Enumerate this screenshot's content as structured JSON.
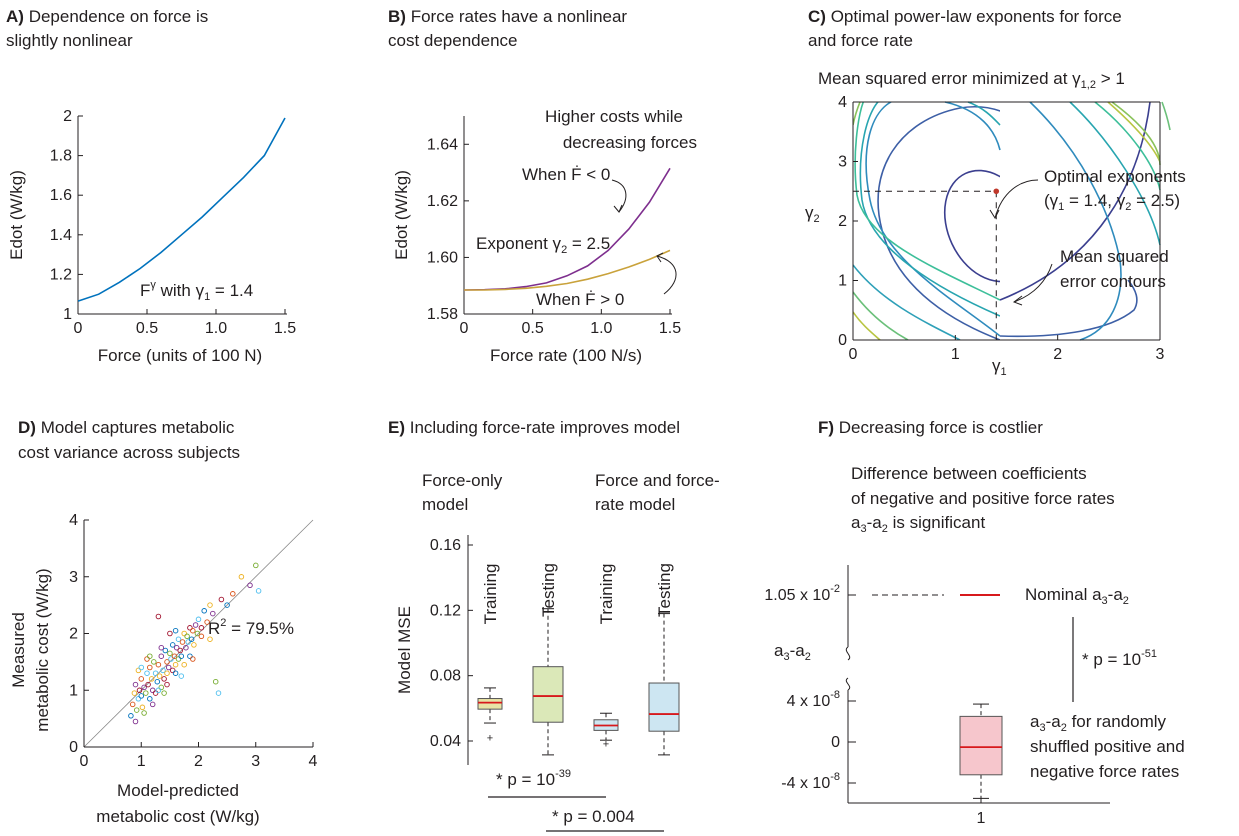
{
  "chart_data": [
    {
      "panel": "A",
      "type": "line",
      "title_letter": "A)",
      "title_line1": "Dependence on force is",
      "title_line2": "slightly nonlinear",
      "xlabel": "Force (units of 100 N)",
      "ylabel": "Edot (W/kg)",
      "xlim": [
        0,
        1.5
      ],
      "ylim": [
        1,
        2
      ],
      "xticks": [
        "0",
        "0.5",
        "1.0",
        "1.5"
      ],
      "yticks": [
        "1",
        "1.2",
        "1.4",
        "1.6",
        "1.8",
        "2"
      ],
      "series": [
        {
          "color": "#0072bd",
          "exponent": 1.4,
          "x": [
            0,
            0.15,
            0.3,
            0.45,
            0.6,
            0.75,
            0.9,
            1.05,
            1.2,
            1.35,
            1.5
          ],
          "y": [
            1.065,
            1.1,
            1.16,
            1.23,
            1.31,
            1.4,
            1.49,
            1.59,
            1.69,
            1.8,
            1.99
          ]
        }
      ],
      "annotation_base": "F",
      "annotation_sup": "γ",
      "annotation_rest": " with γ",
      "annotation_sub": "1",
      "annotation_value": " = 1.4"
    },
    {
      "panel": "B",
      "type": "line",
      "title_letter": "B)",
      "title_line1": "Force rates have a nonlinear",
      "title_line2": "cost dependence",
      "xlabel": "Force rate (100 N/s)",
      "ylabel": "Edot (W/kg)",
      "xlim": [
        0,
        1.5
      ],
      "ylim": [
        1.58,
        1.65
      ],
      "xticks": [
        "0",
        "0.5",
        "1.0",
        "1.5"
      ],
      "yticks": [
        "1.58",
        "1.60",
        "1.62",
        "1.64"
      ],
      "series": [
        {
          "color": "#7e2f8e",
          "label": "When Ḟ < 0",
          "x": [
            0,
            0.15,
            0.3,
            0.45,
            0.6,
            0.75,
            0.9,
            1.05,
            1.2,
            1.35,
            1.5
          ],
          "y": [
            1.5885,
            1.5886,
            1.5889,
            1.5897,
            1.591,
            1.5935,
            1.597,
            1.6025,
            1.61,
            1.6195,
            1.6315
          ]
        },
        {
          "color": "#c9a23b",
          "label": "When Ḟ > 0",
          "x": [
            0,
            0.15,
            0.3,
            0.45,
            0.6,
            0.75,
            0.9,
            1.05,
            1.2,
            1.35,
            1.5
          ],
          "y": [
            1.5885,
            1.5885,
            1.5887,
            1.5891,
            1.5898,
            1.5908,
            1.5923,
            1.5943,
            1.5966,
            1.5993,
            1.6025
          ]
        }
      ],
      "note_line1": "Higher costs while",
      "note_line2": "decreasing forces",
      "upper_label": "When Ḟ < 0",
      "exp_prefix": "Exponent γ",
      "exp_sub": "2",
      "exp_value": " = 2.5",
      "lower_label": "When Ḟ > 0"
    },
    {
      "panel": "C",
      "type": "contour",
      "title_letter": "C)",
      "title_line1": "Optimal power-law exponents for force",
      "title_line2": "and force rate",
      "subtitle_prefix": "Mean squared error minimized at γ",
      "subtitle_sub": "1,2",
      "subtitle_suffix": " > 1",
      "xlabel": "γ",
      "xlabel_sub": "1",
      "ylabel": "γ",
      "ylabel_sub": "2",
      "xlim": [
        0,
        3
      ],
      "ylim": [
        0,
        4
      ],
      "xticks": [
        "0",
        "1",
        "2",
        "3"
      ],
      "yticks": [
        "0",
        "1",
        "2",
        "3",
        "4"
      ],
      "optimum": {
        "x": 1.4,
        "y": 2.5
      },
      "opt_line1": "Optimal exponents",
      "opt_line2_a": "(γ",
      "opt_line2_b": "1",
      "opt_line2_c": " = 1.4, γ",
      "opt_line2_d": "2",
      "opt_line2_e": " = 2.5)",
      "mse_line1": "Mean squared",
      "mse_line2": "error contours"
    },
    {
      "panel": "D",
      "type": "scatter",
      "title_letter": "D)",
      "title_line1": "Model captures metabolic",
      "title_line2": "cost variance across subjects",
      "xlabel_line1": "Model-predicted",
      "xlabel_line2": "metabolic cost (W/kg)",
      "ylabel_line1": "Measured",
      "ylabel_line2": "metabolic cost (W/kg)",
      "xlim": [
        0,
        4
      ],
      "ylim": [
        0,
        4
      ],
      "xticks": [
        "0",
        "1",
        "2",
        "3",
        "4"
      ],
      "yticks": [
        "0",
        "1",
        "2",
        "3",
        "4"
      ],
      "r2_label": "R",
      "r2_sup": "2",
      "r2_value": " = 79.5%",
      "colors": [
        "#0072bd",
        "#d95319",
        "#edb120",
        "#7e2f8e",
        "#77ac30",
        "#4dbeee",
        "#a2142f"
      ],
      "points": [
        [
          0.82,
          0.55
        ],
        [
          0.85,
          0.75
        ],
        [
          0.88,
          0.95
        ],
        [
          0.9,
          1.1
        ],
        [
          0.92,
          0.65
        ],
        [
          0.95,
          0.85
        ],
        [
          0.97,
          1.0
        ],
        [
          1.0,
          0.9
        ],
        [
          1.0,
          1.2
        ],
        [
          1.02,
          0.7
        ],
        [
          1.05,
          1.05
        ],
        [
          1.08,
          0.95
        ],
        [
          1.1,
          1.3
        ],
        [
          1.12,
          1.1
        ],
        [
          1.15,
          0.85
        ],
        [
          1.15,
          1.4
        ],
        [
          1.18,
          1.2
        ],
        [
          1.2,
          1.0
        ],
        [
          1.22,
          1.5
        ],
        [
          1.25,
          1.3
        ],
        [
          1.25,
          0.95
        ],
        [
          1.28,
          1.15
        ],
        [
          1.3,
          1.45
        ],
        [
          1.32,
          1.25
        ],
        [
          1.35,
          1.6
        ],
        [
          1.35,
          1.05
        ],
        [
          1.38,
          1.35
        ],
        [
          1.4,
          1.2
        ],
        [
          1.42,
          1.7
        ],
        [
          1.45,
          1.5
        ],
        [
          1.45,
          1.3
        ],
        [
          1.48,
          1.4
        ],
        [
          1.5,
          1.65
        ],
        [
          1.52,
          1.55
        ],
        [
          1.55,
          1.35
        ],
        [
          1.55,
          1.8
        ],
        [
          1.58,
          1.6
        ],
        [
          1.6,
          1.45
        ],
        [
          1.62,
          1.75
        ],
        [
          1.65,
          1.55
        ],
        [
          1.65,
          1.9
        ],
        [
          1.68,
          1.7
        ],
        [
          1.7,
          1.6
        ],
        [
          1.72,
          1.85
        ],
        [
          1.75,
          2.0
        ],
        [
          1.78,
          1.75
        ],
        [
          1.8,
          1.95
        ],
        [
          1.82,
          1.85
        ],
        [
          1.85,
          2.1
        ],
        [
          1.88,
          1.9
        ],
        [
          1.9,
          2.05
        ],
        [
          1.92,
          1.8
        ],
        [
          1.95,
          2.15
        ],
        [
          1.98,
          2.0
        ],
        [
          2.0,
          2.25
        ],
        [
          2.05,
          2.1
        ],
        [
          2.1,
          2.4
        ],
        [
          2.15,
          2.2
        ],
        [
          2.2,
          2.5
        ],
        [
          2.25,
          2.35
        ],
        [
          2.3,
          1.15
        ],
        [
          2.35,
          0.95
        ],
        [
          2.4,
          2.6
        ],
        [
          2.5,
          2.5
        ],
        [
          2.6,
          2.7
        ],
        [
          2.75,
          3.0
        ],
        [
          2.9,
          2.85
        ],
        [
          3.0,
          3.2
        ],
        [
          3.05,
          2.75
        ],
        [
          1.3,
          2.3
        ],
        [
          1.6,
          2.05
        ],
        [
          1.1,
          1.55
        ],
        [
          0.95,
          1.35
        ],
        [
          1.2,
          0.75
        ],
        [
          1.4,
          0.95
        ],
        [
          1.7,
          1.25
        ],
        [
          1.5,
          2.0
        ],
        [
          1.85,
          1.6
        ],
        [
          2.05,
          1.95
        ],
        [
          1.75,
          1.45
        ],
        [
          0.9,
          0.45
        ],
        [
          1.05,
          0.6
        ],
        [
          1.3,
          1.0
        ],
        [
          1.45,
          1.1
        ],
        [
          1.6,
          1.3
        ],
        [
          1.9,
          1.55
        ],
        [
          2.2,
          1.9
        ],
        [
          1.35,
          1.75
        ],
        [
          1.15,
          1.6
        ],
        [
          1.0,
          1.4
        ]
      ]
    },
    {
      "panel": "E",
      "type": "box",
      "title_letter": "E)",
      "title_line1": "Including force-rate improves model",
      "ylabel": "Model MSE",
      "ylim": [
        0.03,
        0.17
      ],
      "yticks": [
        "0.04",
        "0.08",
        "0.12",
        "0.16"
      ],
      "group1_line1": "Force-only",
      "group1_line2": "model",
      "group2_line1": "Force and force-",
      "group2_line2": "rate model",
      "boxes": [
        {
          "label": "Training",
          "color": "#e9e4a6",
          "q1": 0.0595,
          "median": 0.0635,
          "q3": 0.066,
          "whisker_low": 0.051,
          "whisker_high": 0.0725,
          "outliers": [
            0.042
          ]
        },
        {
          "label": "Testing",
          "color": "#dbe8b8",
          "q1": 0.0515,
          "median": 0.0675,
          "q3": 0.0855,
          "whisker_low": 0.0315,
          "whisker_high": 0.121,
          "outliers": []
        },
        {
          "label": "Training",
          "color": "#cde6f2",
          "q1": 0.0465,
          "median": 0.0495,
          "q3": 0.053,
          "whisker_low": 0.0405,
          "whisker_high": 0.057,
          "outliers": [
            0.0385
          ]
        },
        {
          "label": "Testing",
          "color": "#cde6f2",
          "q1": 0.046,
          "median": 0.0565,
          "q3": 0.0755,
          "whisker_low": 0.0315,
          "whisker_high": 0.118,
          "outliers": []
        }
      ],
      "sig1_prefix": "* p = 10",
      "sig1_exp": "-39",
      "sig2": "* p = 0.004"
    },
    {
      "panel": "F",
      "type": "box",
      "title_letter": "F)",
      "title_line1": "Decreasing force is costlier",
      "desc_line1": "Difference between coefficients",
      "desc_line2": "of negative and positive force rates",
      "desc_line3_a": "a",
      "desc_line3_b": "3",
      "desc_line3_c": "-a",
      "desc_line3_d": "2",
      "desc_line3_e": " is significant",
      "ytick_top_prefix": "1.05 x 10",
      "ytick_top_exp": "-2",
      "ylabel_a": "a",
      "ylabel_b": "3",
      "ylabel_c": "-a",
      "ylabel_d": "2",
      "yticks": [
        {
          "prefix": "4 x 10",
          "exp": "-8",
          "value": 4e-08
        },
        {
          "prefix": "0",
          "exp": "",
          "value": 0
        },
        {
          "prefix": "-4 x 10",
          "exp": "-8",
          "value": -4e-08
        }
      ],
      "xtick": "1",
      "nominal_value": 0.0105,
      "nominal_a": "Nominal a",
      "nominal_b": "3",
      "nominal_c": "-a",
      "nominal_d": "2",
      "sig_prefix": "* p = 10",
      "sig_exp": "-51",
      "shuffle_a": "a",
      "shuffle_b": "3",
      "shuffle_c": "-a",
      "shuffle_d": "2",
      "shuffle_e": " for randomly",
      "shuffle_line2": "shuffled positive and",
      "shuffle_line3": "negative force rates",
      "box": {
        "q1": -3.2e-08,
        "median": -5e-09,
        "q3": 2.5e-08,
        "whisker_low": -5.5e-08,
        "whisker_high": 3.7e-08,
        "color": "#f6c6cc"
      }
    }
  ]
}
